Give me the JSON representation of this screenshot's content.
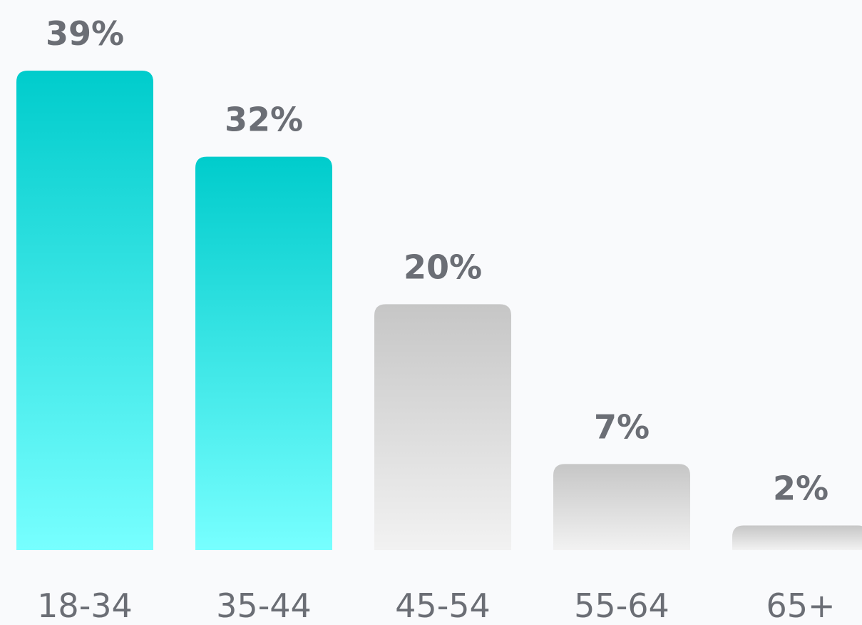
{
  "colors": {
    "background": "#f9fafc",
    "highlight_top": "#00cccc",
    "highlight_bottom": "#77ffff",
    "muted_top": "#c6c6c6",
    "muted_bottom": "#f2f2f2",
    "label": "#6b6e75"
  },
  "chart_data": {
    "type": "bar",
    "categories": [
      "18-34",
      "35-44",
      "45-54",
      "55-64",
      "65+"
    ],
    "values": [
      39,
      32,
      20,
      7,
      2
    ],
    "value_labels": [
      "39%",
      "32%",
      "20%",
      "7%",
      "2%"
    ],
    "highlighted": [
      true,
      true,
      false,
      false,
      false
    ],
    "title": "",
    "xlabel": "",
    "ylabel": "",
    "ylim": [
      0,
      39
    ],
    "grid": false,
    "legend": "none"
  }
}
